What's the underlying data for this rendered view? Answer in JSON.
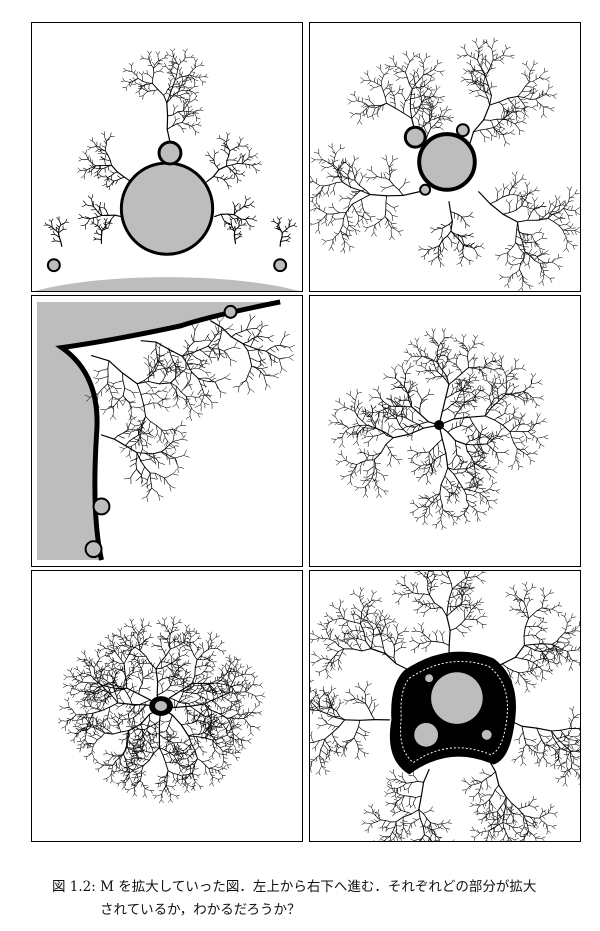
{
  "figure": {
    "colors": {
      "set": "#bdbdbd",
      "ink": "#000000",
      "paper": "#ffffff"
    },
    "panels": [
      {
        "id": "p1"
      },
      {
        "id": "p2"
      },
      {
        "id": "p3"
      },
      {
        "id": "p4"
      },
      {
        "id": "p5"
      },
      {
        "id": "p6"
      }
    ]
  },
  "caption": {
    "label": "図 1.2:",
    "line1": "M を拡大していった図．左上から右下へ進む．それぞれどの部分が拡大",
    "line2": "されているか，わかるだろうか？"
  }
}
